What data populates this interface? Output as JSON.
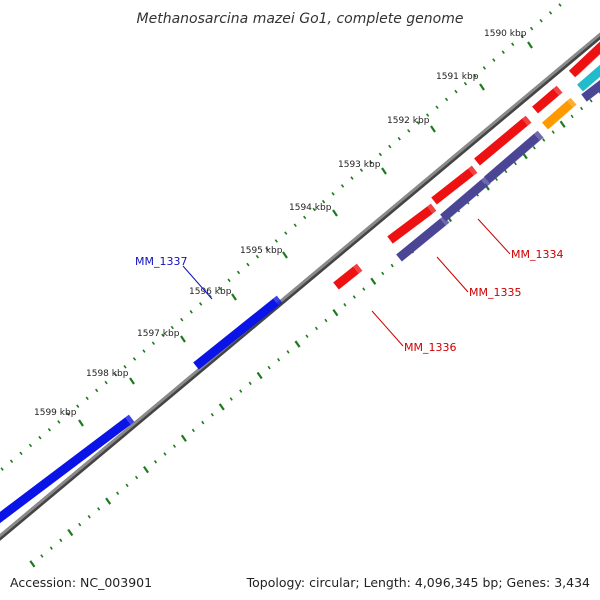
{
  "title": "Methanosarcina mazei Go1, complete genome",
  "footer": {
    "accession": "Accession: NC_003901",
    "summary": "Topology: circular; Length: 4,096,345 bp; Genes: 3,434"
  },
  "colors": {
    "backbone": "#8a8a8a",
    "tick": "#1e7a1e",
    "forward_gene": "#0a14e6",
    "reverse_gene": "#ee1111",
    "reverse_gene_alt": "#4b4596",
    "orange_gene": "#ff9900",
    "cyan_gene": "#22bbcc",
    "label_forward": "#1010c0",
    "label_reverse": "#cc0000"
  },
  "ticks": [
    "1590 kbp",
    "1591 kbp",
    "1592 kbp",
    "1593 kbp",
    "1594 kbp",
    "1595 kbp",
    "1596 kbp",
    "1597 kbp",
    "1598 kbp",
    "1599 kbp"
  ],
  "gene_labels": [
    {
      "text": "MM_1337",
      "strand": "forward"
    },
    {
      "text": "MM_1334",
      "strand": "reverse"
    },
    {
      "text": "MM_1335",
      "strand": "reverse"
    },
    {
      "text": "MM_1336",
      "strand": "reverse"
    }
  ]
}
